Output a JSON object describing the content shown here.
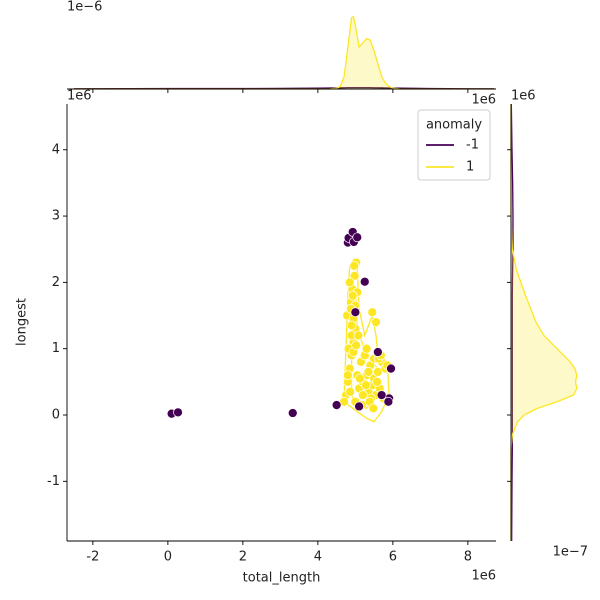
{
  "chart_data": [
    {
      "type": "scatter",
      "xlabel": "total_length",
      "ylabel": "longest",
      "x_offset": "1e6",
      "y_offset": "1e6",
      "xlim": [
        -2.69,
        8.75
      ],
      "ylim": [
        -1.9,
        4.69
      ],
      "xticks": [
        -2,
        0,
        2,
        4,
        6,
        8
      ],
      "yticks": [
        -1,
        0,
        1,
        2,
        3,
        4
      ],
      "legend": {
        "title": "anomaly",
        "loc": "upper right"
      },
      "series": [
        {
          "name": "1",
          "color": "#fde725",
          "x": [
            4.75,
            4.8,
            4.85,
            4.9,
            4.95,
            5.0,
            5.05,
            4.78,
            4.88,
            4.92,
            4.98,
            5.02,
            5.1,
            5.15,
            5.2,
            5.25,
            5.3,
            5.35,
            5.4,
            5.45,
            5.5,
            5.55,
            5.6,
            5.65,
            5.7,
            5.75,
            5.8,
            4.7,
            4.82,
            4.9,
            4.95,
            5.0,
            5.05,
            5.12,
            5.2,
            5.28,
            5.35,
            5.42,
            5.5,
            5.58,
            4.85,
            4.9,
            4.95,
            5.0,
            4.88,
            4.93,
            4.97,
            5.02,
            5.3,
            5.45,
            5.55,
            5.62,
            4.8,
            4.86,
            5.08,
            5.18,
            5.38,
            5.48,
            5.68,
            5.85
          ],
          "values": [
            0.3,
            0.5,
            0.7,
            0.9,
            1.1,
            1.3,
            0.6,
            1.5,
            1.7,
            1.9,
            2.1,
            2.3,
            0.4,
            0.8,
            0.5,
            0.9,
            0.6,
            0.35,
            0.75,
            0.45,
            0.55,
            0.3,
            0.65,
            0.4,
            0.8,
            0.25,
            0.7,
            0.2,
            1.0,
            1.2,
            1.45,
            1.65,
            1.85,
            0.55,
            0.3,
            0.45,
            0.65,
            0.25,
            0.85,
            0.5,
            2.0,
            1.35,
            0.95,
            0.2,
            1.6,
            1.8,
            2.25,
            1.05,
            1.0,
            1.55,
            1.4,
            0.85,
            0.6,
            0.35,
            1.2,
            0.15,
            0.2,
            0.1,
            0.9,
            0.75
          ]
        },
        {
          "name": "-1",
          "color": "#440154",
          "x": [
            0.1,
            0.27,
            3.33,
            4.5,
            4.8,
            4.82,
            4.93,
            4.96,
            5.05,
            5.25,
            5.6,
            5.9,
            5.95,
            5.88,
            5.1,
            5.7,
            5.0
          ],
          "values": [
            0.02,
            0.04,
            0.03,
            0.15,
            2.6,
            2.67,
            2.76,
            2.61,
            2.68,
            2.01,
            0.95,
            0.25,
            0.7,
            0.2,
            0.13,
            0.3,
            1.55
          ]
        }
      ],
      "contours": [
        {
          "color": "#fde725",
          "x": [
            4.7,
            4.75,
            4.8,
            4.85,
            4.95,
            5.05,
            5.1,
            5.25,
            5.45,
            5.55,
            5.6,
            5.85,
            5.9,
            5.7,
            5.5,
            5.3,
            5.05,
            4.7
          ],
          "values": [
            0.3,
            1.0,
            1.8,
            2.25,
            2.35,
            2.2,
            1.6,
            1.2,
            1.5,
            1.2,
            0.9,
            0.8,
            0.3,
            0.05,
            -0.1,
            -0.05,
            0.05,
            0.2
          ]
        },
        {
          "color": "#fde725",
          "x": [
            4.9,
            4.9,
            5.0,
            5.05,
            5.3,
            5.6,
            5.6,
            5.3,
            5.0
          ],
          "values": [
            0.3,
            1.4,
            1.9,
            1.3,
            0.9,
            0.7,
            0.3,
            0.1,
            0.15
          ]
        }
      ]
    },
    {
      "type": "kde",
      "orientation": "vertical",
      "x_offset": "1e6",
      "y_offset": "1e−6",
      "xlim": [
        -2.69,
        8.75
      ],
      "ylim": [
        0,
        1.0
      ],
      "xticks": [
        -2,
        0,
        2,
        4,
        6,
        8
      ],
      "x": [
        -2.5,
        -1,
        0,
        1,
        2,
        3,
        3.5,
        4,
        4.3,
        4.5,
        4.6,
        4.7,
        4.8,
        4.9,
        4.95,
        5.0,
        5.1,
        5.2,
        5.3,
        5.4,
        5.5,
        5.6,
        5.7,
        5.8,
        5.9,
        6.0,
        6.2,
        6.5,
        7,
        8,
        8.7
      ],
      "series": [
        {
          "color": "#440154",
          "fill": false,
          "values": [
            0.002,
            0.004,
            0.006,
            0.006,
            0.006,
            0.007,
            0.008,
            0.01,
            0.012,
            0.013,
            0.014,
            0.015,
            0.016,
            0.016,
            0.016,
            0.016,
            0.016,
            0.016,
            0.016,
            0.016,
            0.015,
            0.015,
            0.014,
            0.013,
            0.012,
            0.011,
            0.01,
            0.008,
            0.006,
            0.003,
            0.002
          ]
        },
        {
          "color": "#fde725",
          "fill": true,
          "values": [
            0,
            0,
            0,
            0,
            0,
            0,
            0,
            0,
            0,
            0.01,
            0.03,
            0.15,
            0.5,
            0.85,
            0.86,
            0.75,
            0.5,
            0.55,
            0.6,
            0.58,
            0.45,
            0.3,
            0.15,
            0.07,
            0.03,
            0.01,
            0,
            0,
            0,
            0,
            0
          ]
        }
      ]
    },
    {
      "type": "kde",
      "orientation": "horizontal",
      "x_offset": "1e−7",
      "y_offset": "1e6",
      "ylim": [
        -1.9,
        4.69
      ],
      "xlim": [
        0,
        1.2
      ],
      "yticks": [
        -1,
        0,
        1,
        2,
        3,
        4
      ],
      "y": [
        -1.9,
        -1,
        -0.5,
        -0.3,
        -0.1,
        0,
        0.1,
        0.2,
        0.3,
        0.4,
        0.5,
        0.6,
        0.7,
        0.8,
        0.9,
        1.0,
        1.2,
        1.4,
        1.6,
        1.8,
        2.0,
        2.2,
        2.5,
        3,
        3.5,
        4,
        4.69
      ],
      "series": [
        {
          "color": "#440154",
          "fill": false,
          "values": [
            0.01,
            0.015,
            0.02,
            0.02,
            0.02,
            0.02,
            0.02,
            0.02,
            0.02,
            0.02,
            0.02,
            0.02,
            0.02,
            0.02,
            0.02,
            0.02,
            0.02,
            0.02,
            0.02,
            0.02,
            0.022,
            0.025,
            0.03,
            0.03,
            0.025,
            0.015,
            0.005
          ]
        },
        {
          "color": "#fde725",
          "fill": true,
          "values": [
            0,
            0,
            0,
            0.02,
            0.1,
            0.2,
            0.4,
            0.7,
            0.95,
            1.0,
            0.98,
            1.0,
            0.97,
            0.9,
            0.8,
            0.7,
            0.5,
            0.38,
            0.3,
            0.22,
            0.15,
            0.08,
            0.02,
            0,
            0,
            0,
            0
          ]
        }
      ]
    }
  ]
}
